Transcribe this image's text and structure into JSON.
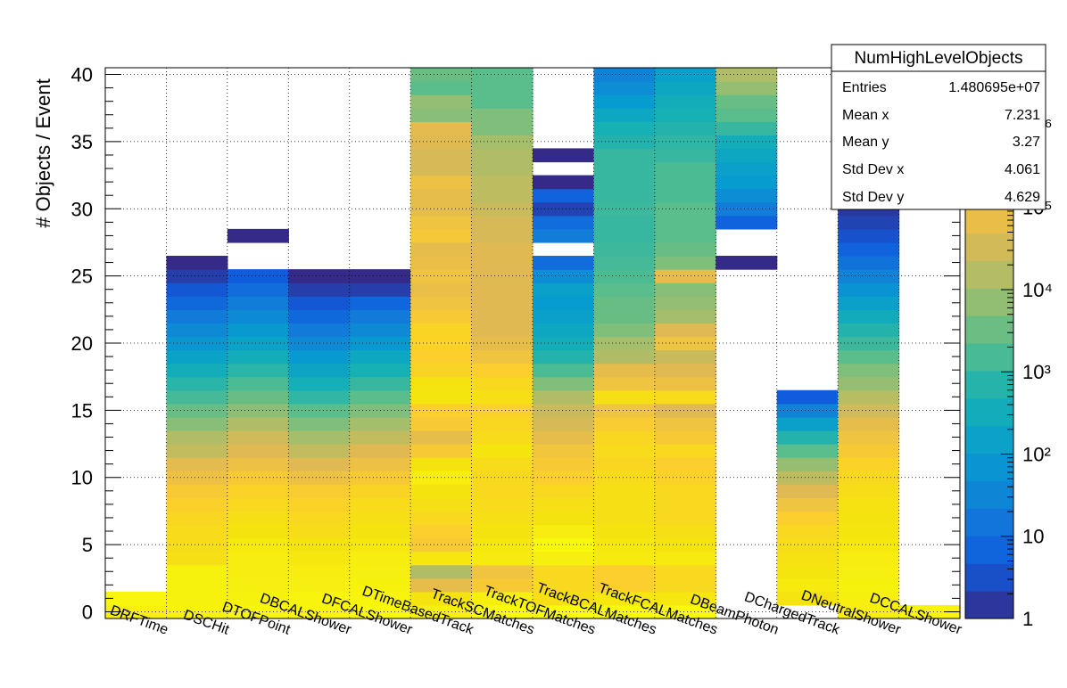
{
  "chart_data": {
    "type": "heatmap",
    "title": "",
    "xlabel": "",
    "ylabel": "# Objects / Event",
    "ylim": [
      -0.5,
      40.5
    ],
    "y_ticks": [
      "0",
      "5",
      "10",
      "15",
      "20",
      "25",
      "30",
      "35",
      "40"
    ],
    "categories": [
      "DRFTime",
      "DSCHit",
      "DTOFPoint",
      "DBCALShower",
      "DFCALShower",
      "DTimeBasedTrack",
      "TrackSCMatches",
      "TrackTOFMatches",
      "TrackBCALMatches",
      "TrackFCALMatches",
      "DBeamPhoton",
      "DChargedTrack",
      "DNeutralShower",
      "DCCALShower"
    ],
    "z_scale": "log",
    "z_range": [
      1,
      5000000
    ],
    "colorbar_labels": [
      "1",
      "10",
      "10²",
      "10³",
      "10⁴",
      "10⁵",
      "10⁶"
    ],
    "columns": [
      {
        "max_y": 1,
        "levels": [
          0.95,
          0.98
        ]
      },
      {
        "max_y": 26,
        "levels": [
          0.96,
          0.96,
          0.96,
          0.96,
          0.88,
          0.87,
          0.86,
          0.84,
          0.81,
          0.78,
          0.74,
          0.71,
          0.65,
          0.62,
          0.56,
          0.52,
          0.47,
          0.43,
          0.38,
          0.33,
          0.28,
          0.24,
          0.19,
          0.14,
          0.09,
          0.04,
          0.0
        ]
      },
      {
        "max_y": 28,
        "levels": [
          0.98,
          0.96,
          0.95,
          0.94,
          0.94,
          0.93,
          0.9,
          0.88,
          0.85,
          0.82,
          0.78,
          0.74,
          0.7,
          0.67,
          0.62,
          0.57,
          0.52,
          0.48,
          0.43,
          0.38,
          0.33,
          0.29,
          0.24,
          0.2,
          0.15,
          0.1,
          null,
          null,
          0.0
        ]
      },
      {
        "max_y": 25,
        "levels": [
          0.97,
          0.97,
          0.95,
          0.94,
          0.92,
          0.9,
          0.87,
          0.85,
          0.82,
          0.79,
          0.74,
          0.7,
          0.65,
          0.6,
          0.55,
          0.5,
          0.44,
          0.39,
          0.34,
          0.29,
          0.24,
          0.19,
          0.14,
          0.09,
          0.04,
          0.0
        ]
      },
      {
        "max_y": 25,
        "levels": [
          0.99,
          0.97,
          0.96,
          0.95,
          0.94,
          0.92,
          0.9,
          0.88,
          0.86,
          0.83,
          0.78,
          0.74,
          0.7,
          0.65,
          0.6,
          0.55,
          0.5,
          0.45,
          0.4,
          0.35,
          0.29,
          0.24,
          0.19,
          0.13,
          0.04,
          0.0
        ]
      },
      {
        "max_y": 40,
        "levels": [
          0.95,
          0.9,
          0.72,
          0.62,
          0.92,
          0.78,
          0.8,
          0.85,
          0.88,
          0.9,
          0.94,
          0.9,
          0.78,
          0.72,
          0.78,
          0.8,
          0.91,
          0.9,
          0.83,
          0.8,
          0.82,
          0.83,
          0.78,
          0.75,
          0.73,
          0.75,
          0.73,
          0.72,
          0.77,
          0.75,
          0.72,
          0.72,
          0.74,
          0.68,
          0.68,
          0.7,
          0.71,
          0.56,
          0.58,
          0.5,
          0.52
        ]
      },
      {
        "max_y": 40,
        "levels": [
          0.99,
          0.95,
          0.78,
          0.75,
          0.93,
          0.92,
          0.9,
          0.88,
          0.86,
          0.85,
          0.85,
          0.86,
          0.91,
          0.86,
          0.84,
          0.82,
          0.88,
          0.85,
          0.8,
          0.75,
          0.72,
          0.7,
          0.7,
          0.7,
          0.7,
          0.7,
          0.7,
          0.7,
          0.68,
          0.68,
          0.66,
          0.64,
          0.64,
          0.62,
          0.62,
          0.6,
          0.55,
          0.55,
          0.5,
          0.5,
          0.5
        ]
      },
      {
        "max_y": 34,
        "levels": [
          1.0,
          0.88,
          0.85,
          0.85,
          0.95,
          0.99,
          0.94,
          0.9,
          0.88,
          0.85,
          0.8,
          0.78,
          0.76,
          0.72,
          0.68,
          0.66,
          0.62,
          0.55,
          0.48,
          0.42,
          0.38,
          0.35,
          0.32,
          0.3,
          0.32,
          0.25,
          0.15,
          null,
          0.2,
          0.15,
          0.05,
          0.12,
          0.0,
          null,
          0.0
        ]
      },
      {
        "max_y": 40,
        "levels": [
          0.99,
          0.92,
          0.8,
          0.8,
          0.93,
          0.92,
          0.9,
          0.88,
          0.88,
          0.88,
          0.86,
          0.84,
          0.86,
          0.84,
          0.79,
          0.75,
          0.88,
          0.75,
          0.72,
          0.62,
          0.6,
          0.55,
          0.52,
          0.52,
          0.5,
          0.48,
          0.47,
          0.46,
          0.45,
          0.45,
          0.46,
          0.45,
          0.45,
          0.45,
          0.45,
          0.42,
          0.4,
          0.35,
          0.3,
          0.25,
          0.22
        ]
      },
      {
        "max_y": 40,
        "levels": [
          0.99,
          0.92,
          0.85,
          0.85,
          0.93,
          0.9,
          0.88,
          0.85,
          0.85,
          0.85,
          0.82,
          0.8,
          0.85,
          0.78,
          0.75,
          0.7,
          0.86,
          0.74,
          0.7,
          0.66,
          0.75,
          0.7,
          0.6,
          0.58,
          0.56,
          0.72,
          0.55,
          0.52,
          0.5,
          0.5,
          0.5,
          0.48,
          0.48,
          0.48,
          0.45,
          0.44,
          0.42,
          0.4,
          0.38,
          0.35,
          0.32
        ]
      },
      {
        "max_y": 40,
        "levels": [
          null,
          null,
          null,
          null,
          null,
          null,
          null,
          null,
          null,
          null,
          null,
          null,
          null,
          null,
          null,
          null,
          null,
          null,
          null,
          null,
          null,
          null,
          null,
          null,
          null,
          null,
          0.0,
          null,
          null,
          0.12,
          0.2,
          0.25,
          0.3,
          0.32,
          0.35,
          0.38,
          0.45,
          0.5,
          0.52,
          0.58,
          0.62
        ]
      },
      {
        "max_y": 16,
        "levels": [
          null,
          0.9,
          0.93,
          0.91,
          0.89,
          0.87,
          0.85,
          0.8,
          0.75,
          0.7,
          0.64,
          0.58,
          0.5,
          0.42,
          0.32,
          0.22,
          0.1
        ]
      },
      {
        "max_y": 40,
        "levels": [
          0.94,
          0.95,
          0.96,
          0.95,
          0.94,
          0.92,
          0.91,
          0.9,
          0.89,
          0.87,
          0.85,
          0.82,
          0.78,
          0.75,
          0.72,
          0.67,
          0.63,
          0.58,
          0.55,
          0.5,
          0.46,
          0.42,
          0.37,
          0.32,
          0.27,
          0.22,
          0.17,
          0.12,
          0.08,
          0.05,
          0.03,
          0.02,
          0.01,
          0.01,
          0.02,
          0.02,
          0.03,
          0.04,
          0.05,
          0.05,
          0.05
        ]
      },
      {
        "max_y": 0,
        "levels": [
          0.97
        ]
      }
    ]
  },
  "stats": {
    "title": "NumHighLevelObjects",
    "rows": [
      {
        "label": "Entries",
        "value": "1.480695e+07"
      },
      {
        "label": "Mean x",
        "value": "7.231"
      },
      {
        "label": "Mean y",
        "value": "3.27"
      },
      {
        "label": "Std Dev x",
        "value": "4.061"
      },
      {
        "label": "Std Dev y",
        "value": "4.629"
      }
    ]
  }
}
